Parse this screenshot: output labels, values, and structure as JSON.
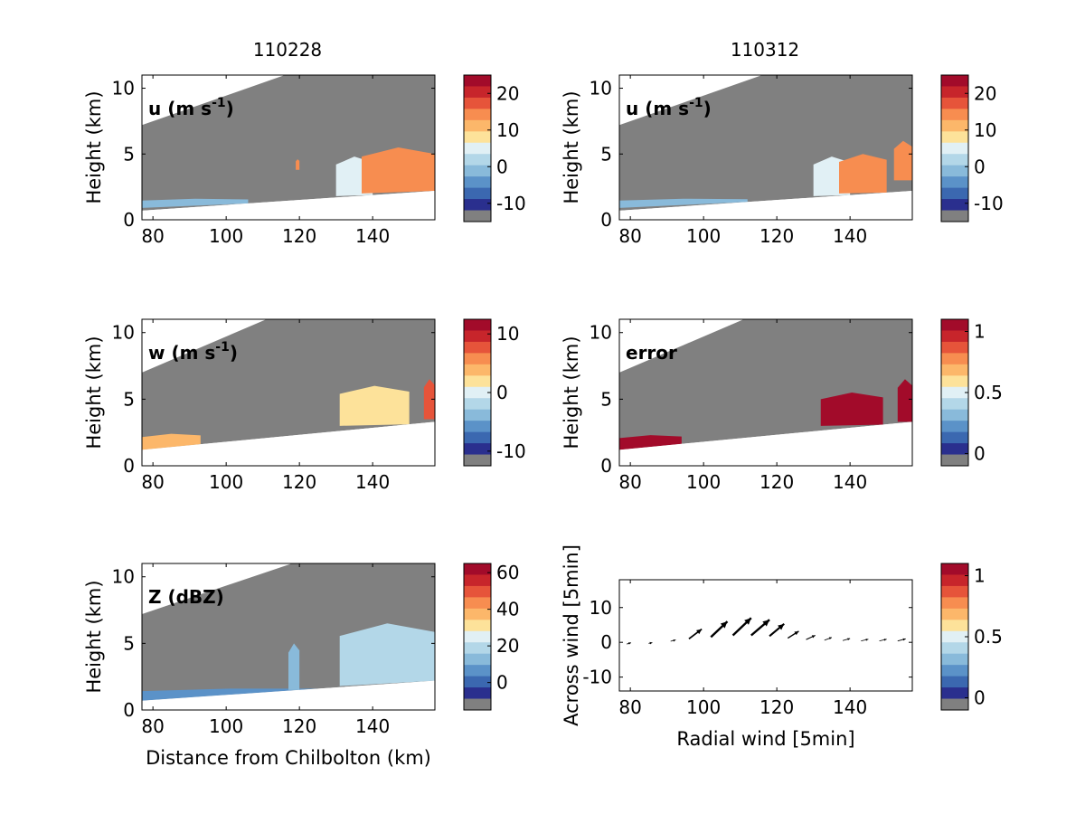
{
  "figure": {
    "column_titles": [
      "110228",
      "110312"
    ],
    "colors": {
      "missing": "#808080",
      "background": "#ffffff",
      "ramp": [
        "#2a2f8e",
        "#3b68b0",
        "#5b92c8",
        "#89bada",
        "#b3d7e8",
        "#e1f0f5",
        "#fde29a",
        "#fcb76a",
        "#f78d50",
        "#e6543a",
        "#c7252b",
        "#a20b2a"
      ]
    }
  },
  "chart_data": [
    {
      "type": "heatmap",
      "title": "u (m s-1)",
      "column": "110228",
      "xlabel": "",
      "ylabel": "Height (km)",
      "xlim": [
        77,
        157
      ],
      "ylim": [
        0,
        11
      ],
      "xticks": [
        "80",
        "100",
        "120",
        "140"
      ],
      "yticks": [
        "0",
        "5",
        "10"
      ],
      "colorbar": {
        "ticks": [
          "20",
          "10",
          "0",
          "-10"
        ],
        "range": [
          -15,
          25
        ]
      },
      "ground_line_km": [
        [
          77,
          0.7
        ],
        [
          157,
          2.2
        ]
      ],
      "data_top_km": [
        [
          77,
          7.2
        ],
        [
          116,
          11
        ]
      ],
      "features": [
        {
          "x_range": [
            77,
            106
          ],
          "z_range": [
            0.9,
            1.6
          ],
          "value": -5
        },
        {
          "x_range": [
            130,
            140
          ],
          "z_range": [
            1.8,
            4.8
          ],
          "value": 2
        },
        {
          "x_range": [
            137,
            157
          ],
          "z_range": [
            2.0,
            5.5
          ],
          "value": 12
        },
        {
          "x_range": [
            119,
            120
          ],
          "z_range": [
            3.8,
            4.6
          ],
          "value": 12
        }
      ]
    },
    {
      "type": "heatmap",
      "title": "u (m s-1)",
      "column": "110312",
      "xlabel": "",
      "ylabel": "Height (km)",
      "xlim": [
        77,
        157
      ],
      "ylim": [
        0,
        11
      ],
      "xticks": [
        "80",
        "100",
        "120",
        "140"
      ],
      "yticks": [
        "0",
        "5",
        "10"
      ],
      "colorbar": {
        "ticks": [
          "20",
          "10",
          "0",
          "-10"
        ],
        "range": [
          -15,
          25
        ]
      },
      "ground_line_km": [
        [
          77,
          0.7
        ],
        [
          157,
          2.2
        ]
      ],
      "data_top_km": [
        [
          77,
          7.2
        ],
        [
          116,
          11
        ]
      ],
      "features": [
        {
          "x_range": [
            77,
            112
          ],
          "z_range": [
            0.9,
            1.6
          ],
          "value": -5
        },
        {
          "x_range": [
            130,
            140
          ],
          "z_range": [
            1.8,
            4.8
          ],
          "value": 2
        },
        {
          "x_range": [
            137,
            150
          ],
          "z_range": [
            2.0,
            5.0
          ],
          "value": 12
        },
        {
          "x_range": [
            152,
            157
          ],
          "z_range": [
            3.0,
            6.0
          ],
          "value": 12
        }
      ]
    },
    {
      "type": "heatmap",
      "title": "w (m s-1)",
      "column": "110228",
      "xlabel": "",
      "ylabel": "Height (km)",
      "xlim": [
        77,
        157
      ],
      "ylim": [
        0,
        11
      ],
      "xticks": [
        "80",
        "100",
        "120",
        "140"
      ],
      "yticks": [
        "0",
        "5",
        "10"
      ],
      "colorbar": {
        "ticks": [
          "10",
          "0",
          "-10"
        ],
        "range": [
          -12.5,
          12.5
        ]
      },
      "ground_line_km": [
        [
          77,
          1.2
        ],
        [
          157,
          3.3
        ]
      ],
      "data_top_km": [
        [
          77,
          7.0
        ],
        [
          111,
          11
        ]
      ],
      "features": [
        {
          "x_range": [
            77,
            93
          ],
          "z_range": [
            1.2,
            2.4
          ],
          "value": 3
        },
        {
          "x_range": [
            131,
            150
          ],
          "z_range": [
            3.0,
            6.0
          ],
          "value": 0
        },
        {
          "x_range": [
            154,
            157
          ],
          "z_range": [
            3.5,
            6.5
          ],
          "value": 8
        }
      ]
    },
    {
      "type": "heatmap",
      "title": "error",
      "column": "110312",
      "xlabel": "",
      "ylabel": "Height (km)",
      "xlim": [
        77,
        157
      ],
      "ylim": [
        0,
        11
      ],
      "xticks": [
        "80",
        "100",
        "120",
        "140"
      ],
      "yticks": [
        "0",
        "5",
        "10"
      ],
      "colorbar": {
        "ticks": [
          "1",
          "0.5",
          "0"
        ],
        "range": [
          -0.1,
          1.1
        ]
      },
      "ground_line_km": [
        [
          77,
          1.2
        ],
        [
          157,
          3.3
        ]
      ],
      "data_top_km": [
        [
          77,
          7.0
        ],
        [
          111,
          11
        ]
      ],
      "features": [
        {
          "x_range": [
            77,
            94
          ],
          "z_range": [
            1.2,
            2.3
          ],
          "value": 1.0
        },
        {
          "x_range": [
            132,
            149
          ],
          "z_range": [
            3.0,
            5.5
          ],
          "value": 1.0
        },
        {
          "x_range": [
            153,
            157
          ],
          "z_range": [
            3.3,
            6.5
          ],
          "value": 1.0
        }
      ]
    },
    {
      "type": "heatmap",
      "title": "Z (dBZ)",
      "column": "110228",
      "xlabel": "Distance from Chilbolton (km)",
      "ylabel": "Height (km)",
      "xlim": [
        77,
        157
      ],
      "ylim": [
        0,
        11
      ],
      "xticks": [
        "80",
        "100",
        "120",
        "140"
      ],
      "yticks": [
        "0",
        "5",
        "10"
      ],
      "colorbar": {
        "ticks": [
          "60",
          "40",
          "20",
          "0"
        ],
        "range": [
          -15,
          65
        ]
      },
      "ground_line_km": [
        [
          77,
          0.7
        ],
        [
          157,
          2.2
        ]
      ],
      "data_top_km": [
        [
          77,
          7.2
        ],
        [
          118,
          11
        ]
      ],
      "features": [
        {
          "x_range": [
            77,
            125
          ],
          "z_range": [
            0.7,
            1.6
          ],
          "value": 0
        },
        {
          "x_range": [
            117,
            120
          ],
          "z_range": [
            1.5,
            5.0
          ],
          "value": 5
        },
        {
          "x_range": [
            131,
            157
          ],
          "z_range": [
            1.8,
            6.5
          ],
          "value": 18
        }
      ]
    },
    {
      "type": "scatter",
      "title": "",
      "column": "110312",
      "xlabel": "Radial wind [5min]",
      "ylabel": "Across wind [5min]",
      "xlim": [
        77,
        157
      ],
      "ylim": [
        -14,
        18
      ],
      "xticks": [
        "80",
        "100",
        "120",
        "140"
      ],
      "yticks": [
        "-10",
        "0",
        "10"
      ],
      "colorbar": {
        "ticks": [
          "1",
          "0.5",
          "0"
        ],
        "range": [
          -0.1,
          1.1
        ]
      },
      "quiver": [
        {
          "x": 79,
          "y": -0.5,
          "u": 1.2,
          "v": 0.4
        },
        {
          "x": 85,
          "y": -0.3,
          "u": 1.0,
          "v": 0.2
        },
        {
          "x": 91,
          "y": 0.3,
          "u": 1.4,
          "v": 0.4
        },
        {
          "x": 96,
          "y": 1.0,
          "u": 3.5,
          "v": 2.8
        },
        {
          "x": 102,
          "y": 1.5,
          "u": 4.5,
          "v": 4.5
        },
        {
          "x": 108,
          "y": 2.0,
          "u": 5.0,
          "v": 5.0
        },
        {
          "x": 113,
          "y": 2.0,
          "u": 5.0,
          "v": 4.5
        },
        {
          "x": 118,
          "y": 1.8,
          "u": 4.0,
          "v": 3.5
        },
        {
          "x": 123,
          "y": 1.2,
          "u": 3.0,
          "v": 2.0
        },
        {
          "x": 128,
          "y": 0.8,
          "u": 2.5,
          "v": 1.2
        },
        {
          "x": 133,
          "y": 0.6,
          "u": 2.0,
          "v": 0.8
        },
        {
          "x": 138,
          "y": 0.5,
          "u": 2.0,
          "v": 0.6
        },
        {
          "x": 143,
          "y": 0.4,
          "u": 2.0,
          "v": 0.5
        },
        {
          "x": 148,
          "y": 0.4,
          "u": 2.0,
          "v": 0.5
        },
        {
          "x": 153,
          "y": 0.4,
          "u": 2.2,
          "v": 0.6
        },
        {
          "x": 157,
          "y": 0.5,
          "u": 2.0,
          "v": 0.6
        }
      ]
    }
  ]
}
